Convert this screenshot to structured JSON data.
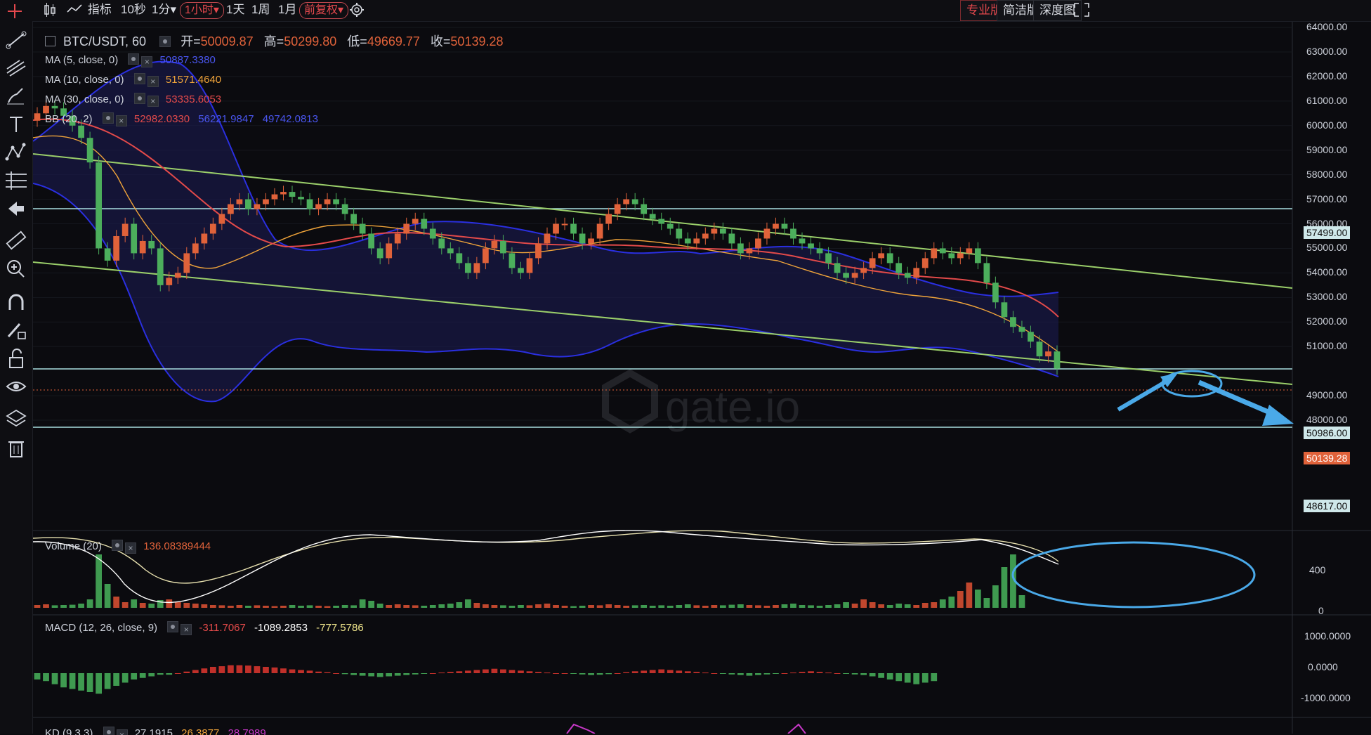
{
  "toolbar": {
    "chart_type_icon": "candlestick-icon",
    "indicators_label": "指标",
    "intervals": [
      "10秒",
      "1分▾",
      "1小时▾",
      "1天",
      "1周",
      "1月"
    ],
    "active_interval": "1小时▾",
    "adjust_label": "前复权▾",
    "settings_icon": "gear-icon",
    "views": [
      "专业版",
      "简洁版",
      "深度图"
    ],
    "active_view": "专业版",
    "fullscreen_icon": "fullscreen-icon"
  },
  "sidebar": {
    "icons": [
      "crosshair-icon",
      "trendline-icon",
      "fib-icon",
      "brush-icon",
      "text-icon",
      "pattern-icon",
      "measure-icon",
      "back-arrow-icon",
      "ruler-icon",
      "zoom-icon",
      "magnet-icon",
      "lock-draw-icon",
      "unlock-icon",
      "eye-icon",
      "layers-icon",
      "trash-icon"
    ]
  },
  "legend": {
    "symbol": "BTC/USDT, 60",
    "open_label": "开=",
    "open": "50009.87",
    "high_label": "高=",
    "high": "50299.80",
    "low_label": "低=",
    "low": "49669.77",
    "close_label": "收=",
    "close": "50139.28",
    "ma5_label": "MA (5, close, 0)",
    "ma5": "50887.3380",
    "ma10_label": "MA (10, close, 0)",
    "ma10": "51571.4640",
    "ma30_label": "MA (30, close, 0)",
    "ma30": "53335.6053",
    "bb_label": "BB (20, 2)",
    "bb_mid": "52982.0330",
    "bb_upper": "56221.9847",
    "bb_lower": "49742.0813"
  },
  "volume": {
    "label": "Volume (20)",
    "value": "136.08389444"
  },
  "macd": {
    "label": "MACD (12, 26, close, 9)",
    "v1": "-311.7067",
    "v2": "-1089.2853",
    "v3": "-777.5786"
  },
  "kd": {
    "label": "KD (9,3,3)",
    "v1": "27.1915",
    "v2": "26.3877",
    "v3": "28.7989"
  },
  "price_axis": [
    "64000.00",
    "63000.00",
    "62000.00",
    "61000.00",
    "60000.00",
    "59000.00",
    "58000.00",
    "57000.00",
    "56000.00",
    "55000.00",
    "54000.00",
    "53000.00",
    "52000.00",
    "51000.00",
    "49000.00",
    "48000.00"
  ],
  "price_tags": {
    "level_high": "57499.00",
    "level_mid": "50986.00",
    "current": "50139.28",
    "level_low": "48617.00"
  },
  "volume_axis": [
    "400",
    "0"
  ],
  "macd_axis": [
    "1000.0000",
    "0.0000",
    "-1000.0000"
  ],
  "watermark": "gate.io",
  "colors": {
    "up": "#e0623a",
    "down": "#4cae5c",
    "ma5": "#3b47d8",
    "ma10": "#f0a43a",
    "ma30": "#e34a4a",
    "bb": "#2a2fe0",
    "channel": "#9bcf6a",
    "annotation": "#4aa9e8"
  },
  "chart_data": {
    "type": "candlestick",
    "ylim": [
      48000,
      64000
    ],
    "close_series": [
      60500,
      60800,
      60700,
      60400,
      60000,
      59500,
      58500,
      55000,
      54500,
      55500,
      56000,
      54800,
      55300,
      55000,
      53500,
      53800,
      54000,
      54800,
      55200,
      55600,
      56000,
      56400,
      56800,
      57000,
      56600,
      56800,
      57000,
      57200,
      57300,
      57100,
      57000,
      56600,
      56800,
      57000,
      56800,
      56400,
      56000,
      55600,
      55000,
      54600,
      55200,
      55600,
      56000,
      56200,
      55800,
      55400,
      55000,
      54800,
      54400,
      54000,
      54400,
      55000,
      55300,
      54800,
      54200,
      54000,
      54600,
      55200,
      55600,
      56000,
      56000,
      55600,
      55200,
      55400,
      56000,
      56400,
      56800,
      57000,
      56800,
      56400,
      56200,
      56000,
      55800,
      55400,
      55200,
      55400,
      55600,
      55800,
      55600,
      55200,
      54800,
      55000,
      55400,
      55800,
      56000,
      55800,
      55400,
      55200,
      55000,
      54800,
      54400,
      54000,
      53800,
      54000,
      54200,
      54600,
      54800,
      54400,
      54000,
      53800,
      54200,
      54600,
      55000,
      54800,
      54600,
      54800,
      55000,
      54400,
      53600,
      52800,
      52200,
      51800,
      51600,
      51200,
      50600,
      50800,
      50100
    ],
    "volume_series": [
      20,
      25,
      18,
      20,
      22,
      30,
      60,
      380,
      170,
      80,
      40,
      60,
      35,
      30,
      55,
      60,
      40,
      35,
      30,
      25,
      20,
      18,
      15,
      20,
      15,
      18,
      15,
      12,
      15,
      20,
      15,
      18,
      15,
      12,
      15,
      20,
      18,
      60,
      50,
      30,
      20,
      25,
      20,
      18,
      15,
      20,
      25,
      30,
      40,
      60,
      35,
      25,
      20,
      18,
      15,
      20,
      18,
      25,
      30,
      20,
      15,
      12,
      15,
      20,
      18,
      25,
      20,
      15,
      18,
      20,
      15,
      18,
      15,
      20,
      25,
      18,
      15,
      20,
      18,
      22,
      25,
      20,
      18,
      15,
      20,
      25,
      30,
      20,
      18,
      15,
      20,
      25,
      40,
      30,
      60,
      40,
      25,
      20,
      30,
      25,
      20,
      35,
      40,
      60,
      80,
      120,
      180,
      130,
      70,
      160,
      290,
      380,
      90
    ],
    "macd_hist": [
      -200,
      -250,
      -350,
      -450,
      -500,
      -550,
      -600,
      -650,
      -500,
      -400,
      -300,
      -200,
      -150,
      -100,
      -50,
      -50,
      0,
      50,
      100,
      150,
      200,
      220,
      250,
      250,
      240,
      220,
      200,
      180,
      150,
      120,
      100,
      80,
      50,
      30,
      0,
      -30,
      -60,
      -80,
      -100,
      -120,
      -100,
      -80,
      -60,
      -40,
      -20,
      0,
      20,
      40,
      60,
      80,
      100,
      120,
      140,
      120,
      100,
      80,
      60,
      40,
      20,
      0,
      0,
      -20,
      -40,
      -60,
      -50,
      -30,
      0,
      30,
      60,
      80,
      100,
      120,
      100,
      80,
      60,
      40,
      20,
      0,
      -20,
      -40,
      -60,
      -80,
      -60,
      -40,
      -20,
      0,
      20,
      40,
      60,
      40,
      20,
      0,
      -20,
      -40,
      -60,
      -100,
      -150,
      -200,
      -250,
      -300,
      -350,
      -300,
      -250
    ]
  }
}
